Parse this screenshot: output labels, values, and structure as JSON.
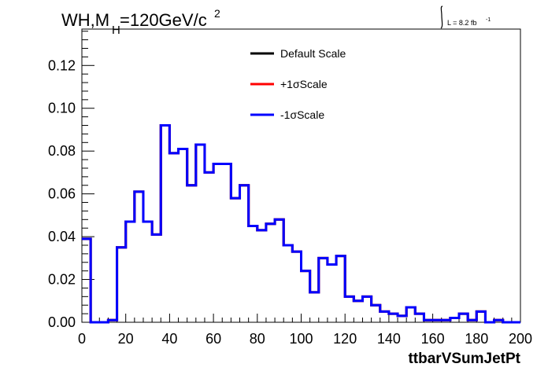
{
  "chart_data": {
    "type": "line",
    "title_main": "WH,M",
    "title_sub": "H",
    "title_rest": "=120GeV/c",
    "title_sup": "2",
    "lumi_text": "L = 8.2 fb",
    "lumi_sup": "-1",
    "xlabel": "ttbarVSumJetPt",
    "ylabel": "",
    "xlim": [
      0,
      200
    ],
    "ylim": [
      0,
      0.137
    ],
    "x_ticks": [
      0,
      20,
      40,
      60,
      80,
      100,
      120,
      140,
      160,
      180,
      200
    ],
    "y_ticks": [
      0.0,
      0.02,
      0.04,
      0.06,
      0.08,
      0.1,
      0.12
    ],
    "y_tick_labels": [
      "0.00",
      "0.02",
      "0.04",
      "0.06",
      "0.08",
      "0.10",
      "0.12"
    ],
    "x_tick_labels": [
      "0",
      "20",
      "40",
      "60",
      "80",
      "100",
      "120",
      "140",
      "160",
      "180",
      "200"
    ],
    "bin_width": 4,
    "legend_position": "top-center",
    "series": [
      {
        "name": "Default Scale",
        "color": "#000000",
        "values": [
          0.039,
          0.0,
          0.0,
          0.001,
          0.035,
          0.047,
          0.061,
          0.047,
          0.041,
          0.092,
          0.079,
          0.081,
          0.064,
          0.083,
          0.07,
          0.074,
          0.074,
          0.058,
          0.064,
          0.045,
          0.043,
          0.046,
          0.048,
          0.036,
          0.033,
          0.024,
          0.014,
          0.03,
          0.027,
          0.031,
          0.012,
          0.01,
          0.012,
          0.008,
          0.005,
          0.004,
          0.003,
          0.007,
          0.004,
          0.001,
          0.001,
          0.001,
          0.002,
          0.004,
          0.001,
          0.005,
          0.0,
          0.001,
          0.0,
          0.0
        ]
      },
      {
        "name": "+1σScale",
        "color": "#ff0000",
        "values": [
          0.039,
          0.0,
          0.0,
          0.001,
          0.035,
          0.047,
          0.061,
          0.047,
          0.041,
          0.092,
          0.079,
          0.081,
          0.064,
          0.083,
          0.07,
          0.074,
          0.074,
          0.058,
          0.064,
          0.045,
          0.043,
          0.046,
          0.048,
          0.036,
          0.033,
          0.024,
          0.014,
          0.03,
          0.027,
          0.031,
          0.012,
          0.01,
          0.012,
          0.008,
          0.005,
          0.004,
          0.003,
          0.007,
          0.004,
          0.001,
          0.001,
          0.001,
          0.002,
          0.004,
          0.001,
          0.005,
          0.0,
          0.001,
          0.0,
          0.0
        ]
      },
      {
        "name": "-1σScale",
        "color": "#0000ff",
        "values": [
          0.039,
          0.0,
          0.0,
          0.001,
          0.035,
          0.047,
          0.061,
          0.047,
          0.041,
          0.092,
          0.079,
          0.081,
          0.064,
          0.083,
          0.07,
          0.074,
          0.074,
          0.058,
          0.064,
          0.045,
          0.043,
          0.046,
          0.048,
          0.036,
          0.033,
          0.024,
          0.014,
          0.03,
          0.027,
          0.031,
          0.012,
          0.01,
          0.012,
          0.008,
          0.005,
          0.004,
          0.003,
          0.007,
          0.004,
          0.001,
          0.001,
          0.001,
          0.002,
          0.004,
          0.001,
          0.005,
          0.0,
          0.001,
          0.0,
          0.0
        ]
      }
    ]
  }
}
